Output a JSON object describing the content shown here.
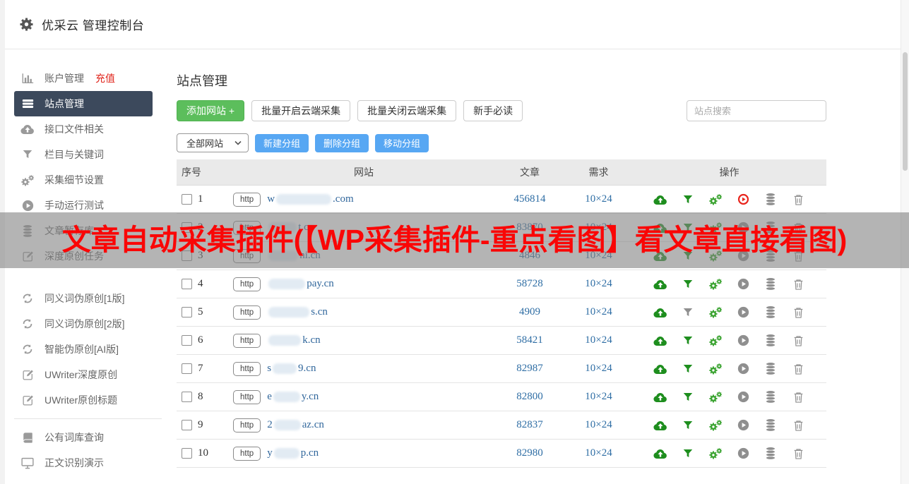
{
  "topbar": {
    "title": "优采云 管理控制台"
  },
  "sidebar": {
    "primary": [
      {
        "icon": "chart-bars",
        "label": "账户管理",
        "badge": "充值"
      },
      {
        "icon": "list",
        "label": "站点管理",
        "active": true
      },
      {
        "icon": "cloud-upload",
        "label": "接口文件相关"
      },
      {
        "icon": "filter",
        "label": "栏目与关键词"
      },
      {
        "icon": "gears",
        "label": "采集细节设置"
      },
      {
        "icon": "play-circle",
        "label": "手动运行测试"
      },
      {
        "icon": "database",
        "label": "文章暂存库"
      },
      {
        "icon": "edit",
        "label": "深度原创任务"
      }
    ],
    "pseudo": [
      {
        "icon": "refresh",
        "label": "同义词伪原创[1版]"
      },
      {
        "icon": "refresh",
        "label": "同义词伪原创[2版]"
      },
      {
        "icon": "refresh",
        "label": "智能伪原创[AI版]"
      },
      {
        "icon": "edit",
        "label": "UWriter深度原创"
      },
      {
        "icon": "edit",
        "label": "UWriter原创标题"
      }
    ],
    "tools": [
      {
        "icon": "book",
        "label": "公有词库查询"
      },
      {
        "icon": "monitor",
        "label": "正文识别演示"
      }
    ]
  },
  "main": {
    "title": "站点管理",
    "toolbar": {
      "add_site": "添加网站 +",
      "batch_open": "批量开启云端采集",
      "batch_close": "批量关闭云端采集",
      "newbie_guide": "新手必读",
      "search_placeholder": "站点搜索"
    },
    "group_bar": {
      "filter_select": "全部网站",
      "new_group": "新建分组",
      "delete_group": "删除分组",
      "move_group": "移动分组"
    },
    "table": {
      "headers": {
        "index": "序号",
        "site": "网站",
        "articles": "文章",
        "demand": "需求",
        "actions": "操作"
      },
      "rows": [
        {
          "index": "1",
          "protocol": "http",
          "domain_pre": "w",
          "blur_width": 78,
          "domain_post": ".com",
          "articles": "456814",
          "demand": "10×24",
          "filter_green": true,
          "play_red": true
        },
        {
          "index": "2",
          "protocol": "http",
          "domain_pre": "",
          "blur_width": 40,
          "domain_post": "t.cn",
          "articles": "83870",
          "demand": "10×24",
          "filter_green": true,
          "play_red": false
        },
        {
          "index": "3",
          "protocol": "http",
          "domain_pre": "",
          "blur_width": 42,
          "domain_post": "ni.cn",
          "articles": "4846",
          "demand": "10×24",
          "filter_green": true,
          "play_red": false
        },
        {
          "index": "4",
          "protocol": "http",
          "domain_pre": "",
          "blur_width": 52,
          "domain_post": "pay.cn",
          "articles": "58728",
          "demand": "10×24",
          "filter_green": true,
          "play_red": false
        },
        {
          "index": "5",
          "protocol": "http",
          "domain_pre": "",
          "blur_width": 58,
          "domain_post": "s.cn",
          "articles": "4909",
          "demand": "10×24",
          "filter_green": false,
          "play_red": false
        },
        {
          "index": "6",
          "protocol": "http",
          "domain_pre": "",
          "blur_width": 46,
          "domain_post": "k.cn",
          "articles": "58421",
          "demand": "10×24",
          "filter_green": true,
          "play_red": false
        },
        {
          "index": "7",
          "protocol": "http",
          "domain_pre": "s",
          "blur_width": 34,
          "domain_post": "9.cn",
          "articles": "82987",
          "demand": "10×24",
          "filter_green": true,
          "play_red": false
        },
        {
          "index": "8",
          "protocol": "http",
          "domain_pre": "e",
          "blur_width": 38,
          "domain_post": "y.cn",
          "articles": "82800",
          "demand": "10×24",
          "filter_green": true,
          "play_red": false
        },
        {
          "index": "9",
          "protocol": "http",
          "domain_pre": "2",
          "blur_width": 38,
          "domain_post": "az.cn",
          "articles": "82837",
          "demand": "10×24",
          "filter_green": true,
          "play_red": false
        },
        {
          "index": "10",
          "protocol": "http",
          "domain_pre": "y",
          "blur_width": 36,
          "domain_post": "p.cn",
          "articles": "82980",
          "demand": "10×24",
          "filter_green": true,
          "play_red": false
        }
      ]
    }
  },
  "watermark": {
    "text": "文章自动采集插件(【WP采集插件-重点看图】看文章直接看图)"
  },
  "colors": {
    "accent_green": "#5cbe5c",
    "accent_green_border": "#50b250",
    "accent_blue": "#57a7f3",
    "link_blue": "#2e6da4",
    "icon_green": "#1e8e1e",
    "gear_green": "#3aa330",
    "icon_gray": "#8f8f8f",
    "play_red": "#e8251d",
    "badge_red": "#e0241b",
    "watermark_red": "#fa0606",
    "topbar_icon": "#555555",
    "sidebar_icon": "#9a9a9a"
  }
}
